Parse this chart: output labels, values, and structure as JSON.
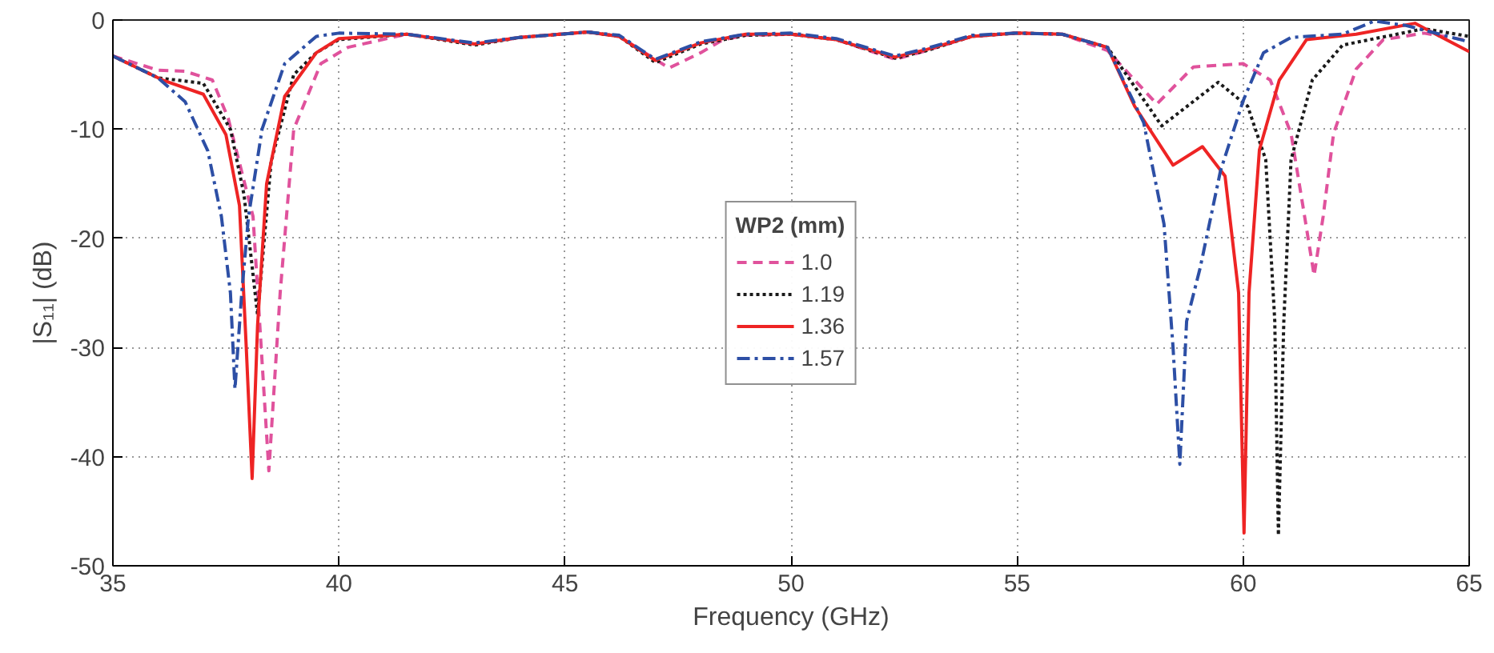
{
  "chart_data": {
    "type": "line",
    "xlabel": "Frequency (GHz)",
    "ylabel": "|S₁₁| (dB)",
    "legend_title": "WP2 (mm)",
    "xlim": [
      35,
      65
    ],
    "ylim": [
      -50,
      0
    ],
    "xticks": [
      35,
      40,
      45,
      50,
      55,
      60,
      65
    ],
    "yticks": [
      -50,
      -40,
      -30,
      -20,
      -10,
      0
    ],
    "grid": true,
    "legend": "center",
    "series": [
      {
        "name": "1.0",
        "color": "#e0529c",
        "line_style": "dashed",
        "x": [
          35,
          36,
          36.6,
          37.2,
          37.55,
          38.1,
          38.45,
          38.7,
          39.0,
          39.6,
          40.2,
          41.5,
          43,
          44,
          45.5,
          46.2,
          47.3,
          48,
          48.5,
          49,
          50,
          51,
          52.3,
          53,
          54,
          55,
          56,
          57,
          58.09,
          58.9,
          60.0,
          60.6,
          61.06,
          61.36,
          61.57,
          61.77,
          62.0,
          62.5,
          63.1,
          64.0,
          65
        ],
        "values": [
          -3.3,
          -4.6,
          -4.7,
          -5.5,
          -9,
          -18,
          -41.3,
          -25,
          -10,
          -4,
          -2.5,
          -1.3,
          -2.2,
          -1.6,
          -1.1,
          -1.5,
          -4.4,
          -3.0,
          -1.8,
          -1.4,
          -1.3,
          -1.8,
          -3.6,
          -2.8,
          -1.5,
          -1.2,
          -1.3,
          -2.8,
          -7.7,
          -4.3,
          -4,
          -5.5,
          -10.4,
          -18,
          -23.4,
          -18,
          -10.4,
          -4.5,
          -1.8,
          -1.2,
          -1.9
        ]
      },
      {
        "name": "1.19",
        "color": "#1a1a1a",
        "line_style": "dotted",
        "x": [
          35,
          36,
          37,
          37.6,
          37.9,
          38.2,
          38.5,
          39.0,
          39.5,
          40,
          41.5,
          43,
          44,
          45.5,
          46.2,
          47,
          48,
          49,
          50,
          51,
          52.3,
          53,
          54,
          55,
          56,
          57,
          58.2,
          59.45,
          60.1,
          60.5,
          60.7,
          60.78,
          60.9,
          61.06,
          61.53,
          62.2,
          63.4,
          64,
          65
        ],
        "values": [
          -3.3,
          -5.3,
          -5.8,
          -10,
          -16,
          -27,
          -13,
          -5,
          -3,
          -1.8,
          -1.3,
          -2.3,
          -1.6,
          -1.1,
          -1.5,
          -3.9,
          -2.2,
          -1.4,
          -1.3,
          -1.8,
          -3.5,
          -2.8,
          -1.5,
          -1.2,
          -1.3,
          -2.5,
          -9.7,
          -5.7,
          -7.9,
          -12.8,
          -27.6,
          -47.2,
          -27.6,
          -12.8,
          -5.5,
          -2.3,
          -1.3,
          -0.8,
          -1.5
        ]
      },
      {
        "name": "1.36",
        "color": "#ee2424",
        "line_style": "solid",
        "x": [
          35,
          36.1,
          37,
          37.5,
          37.8,
          37.95,
          38.08,
          38.2,
          38.4,
          38.8,
          39.5,
          40,
          41.5,
          43,
          44,
          45.5,
          46.2,
          47,
          48,
          49,
          50,
          51,
          52.3,
          53,
          54,
          55,
          56,
          57,
          57.6,
          58.45,
          59.1,
          59.6,
          59.9,
          60.02,
          60.13,
          60.36,
          60.8,
          61.4,
          62.5,
          63.8,
          65
        ],
        "values": [
          -3.3,
          -5.5,
          -6.8,
          -10.5,
          -17,
          -30,
          -42,
          -28,
          -15,
          -7,
          -3,
          -1.7,
          -1.3,
          -2.2,
          -1.6,
          -1.1,
          -1.5,
          -3.7,
          -2.1,
          -1.3,
          -1.3,
          -1.8,
          -3.4,
          -2.7,
          -1.5,
          -1.2,
          -1.3,
          -2.5,
          -7.9,
          -13.3,
          -11.6,
          -14.3,
          -25,
          -47,
          -25,
          -11.9,
          -5.5,
          -1.8,
          -1.3,
          -0.3,
          -2.9
        ]
      },
      {
        "name": "1.57",
        "color": "#2d4fa5",
        "line_style": "dashdot",
        "x": [
          35,
          36,
          36.6,
          37.1,
          37.4,
          37.6,
          37.7,
          37.85,
          38.0,
          38.3,
          38.8,
          39.5,
          40,
          41.5,
          43,
          44,
          45.5,
          46.2,
          47,
          48,
          49,
          50,
          51,
          52.3,
          53,
          54,
          55,
          56,
          57,
          57.8,
          58.25,
          58.45,
          58.6,
          58.75,
          59.05,
          59.5,
          60.0,
          60.45,
          61.06,
          62.2,
          62.9,
          63.6,
          65
        ],
        "values": [
          -3.3,
          -5.3,
          -7.5,
          -12,
          -18,
          -25,
          -33.8,
          -25,
          -18,
          -10,
          -4,
          -1.5,
          -1.2,
          -1.3,
          -2.1,
          -1.6,
          -1.1,
          -1.4,
          -3.6,
          -2.0,
          -1.3,
          -1.2,
          -1.7,
          -3.3,
          -2.6,
          -1.4,
          -1.2,
          -1.3,
          -2.5,
          -9.4,
          -18.7,
          -30,
          -40.7,
          -27.6,
          -22.7,
          -13.8,
          -7.4,
          -3,
          -1.6,
          -1.3,
          -0.1,
          -0.5,
          -2
        ]
      }
    ]
  }
}
